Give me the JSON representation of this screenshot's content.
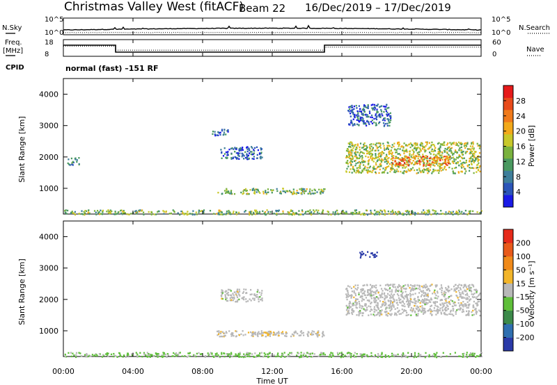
{
  "header": {
    "station": "Christmas Valley West (fitACF)",
    "beam": "Beam 22",
    "dates": "16/Dec/2019 – 17/Dec/2019"
  },
  "params_panel": {
    "left_top_label": "N.Sky",
    "left_mid_label": "Freq.",
    "left_mid_units": "[MHz]",
    "left_bottom_label": "CPID",
    "right_top_label": "N.Search",
    "right_bottom_label": "Nave",
    "cpid_text": "normal (fast) –151 RF",
    "nsky_ticks": [
      "10^5",
      "10^0"
    ],
    "nsearch_ticks": [
      "10^5",
      "10^0"
    ],
    "freq_ticks": [
      "18",
      "8"
    ],
    "nave_ticks": [
      "60",
      "0"
    ],
    "freq_steps": [
      {
        "start": 0.0,
        "end": 3.0,
        "freq": 15
      },
      {
        "start": 3.0,
        "end": 15.0,
        "freq": 10
      },
      {
        "start": 15.0,
        "end": 24.0,
        "freq": 15
      }
    ],
    "nave_steps": [
      {
        "start": 0.0,
        "end": 3.0,
        "nave": 40
      },
      {
        "start": 3.0,
        "end": 15.0,
        "nave": 24
      },
      {
        "start": 15.0,
        "end": 24.0,
        "nave": 36
      }
    ]
  },
  "power_scale": {
    "label": "Power [dB]",
    "ticks": [
      "28",
      "24",
      "20",
      "16",
      "12",
      "8",
      "4"
    ],
    "colors": [
      "#1a1ae6",
      "#2b55b8",
      "#3e7e9a",
      "#4a9960",
      "#7ab23e",
      "#c8c82a",
      "#f2a91a",
      "#f07a1a",
      "#e84a1a",
      "#e61a1a"
    ]
  },
  "velocity_scale": {
    "label": "Velocity [m s⁻¹]",
    "ticks": [
      "200",
      "100",
      "50",
      "15",
      "–15",
      "–50",
      "–100",
      "–200"
    ],
    "colors": [
      "#2a3aa8",
      "#2f6fb0",
      "#3c8a4a",
      "#5fbf3a",
      "#b8b8b8",
      "#f2b52a",
      "#f08a1a",
      "#e85a1a",
      "#e62a1a"
    ]
  },
  "axes": {
    "ylabel": "Slant Range [km]",
    "xlabel": "Time UT",
    "yticks": [
      "4000",
      "3000",
      "2000",
      "1000"
    ],
    "xticks": [
      "00:00",
      "04:00",
      "08:00",
      "12:00",
      "16:00",
      "20:00",
      "00:00"
    ]
  },
  "chart_data": [
    {
      "type": "heatmap",
      "title": "Power",
      "xlabel": "Time UT",
      "ylabel": "Slant Range [km]",
      "x_range_hours": [
        0,
        24
      ],
      "y_range_km": [
        180,
        4500
      ],
      "colorbar": {
        "label": "Power [dB]",
        "range": [
          0,
          32
        ]
      },
      "echo_regions": [
        {
          "t0": 0.0,
          "t1": 24.0,
          "r0": 180,
          "r1": 330,
          "value": 14
        },
        {
          "t0": 0.2,
          "t1": 0.9,
          "r0": 1760,
          "r1": 2000,
          "value": 8
        },
        {
          "t0": 8.8,
          "t1": 15.0,
          "r0": 840,
          "r1": 1020,
          "value": 14
        },
        {
          "t0": 8.5,
          "t1": 9.5,
          "r0": 2700,
          "r1": 2900,
          "value": 6
        },
        {
          "t0": 9.0,
          "t1": 11.4,
          "r0": 1950,
          "r1": 2350,
          "value": 6
        },
        {
          "t0": 16.2,
          "t1": 23.9,
          "r0": 1500,
          "r1": 2500,
          "value": 16
        },
        {
          "t0": 18.8,
          "t1": 22.2,
          "r0": 1750,
          "r1": 2050,
          "value": 24
        },
        {
          "t0": 16.3,
          "t1": 18.8,
          "r0": 3000,
          "r1": 3700,
          "value": 6
        }
      ]
    },
    {
      "type": "heatmap",
      "title": "Velocity",
      "xlabel": "Time UT",
      "ylabel": "Slant Range [km]",
      "x_range_hours": [
        0,
        24
      ],
      "y_range_km": [
        180,
        4500
      ],
      "colorbar": {
        "label": "Velocity [m s⁻¹]",
        "range": [
          -250,
          250
        ]
      },
      "echo_regions": [
        {
          "t0": 0.0,
          "t1": 24.0,
          "r0": 180,
          "r1": 330,
          "value": -40
        },
        {
          "t0": 8.8,
          "t1": 15.0,
          "r0": 840,
          "r1": 1020,
          "value": 5
        },
        {
          "t0": 10.8,
          "t1": 12.6,
          "r0": 870,
          "r1": 1000,
          "value": 40
        },
        {
          "t0": 9.0,
          "t1": 11.4,
          "r0": 1950,
          "r1": 2350,
          "value": 0
        },
        {
          "t0": 16.2,
          "t1": 23.9,
          "r0": 1500,
          "r1": 2500,
          "value": 0
        },
        {
          "t0": 17.0,
          "t1": 18.0,
          "r0": 3350,
          "r1": 3550,
          "value": -220
        }
      ]
    }
  ]
}
